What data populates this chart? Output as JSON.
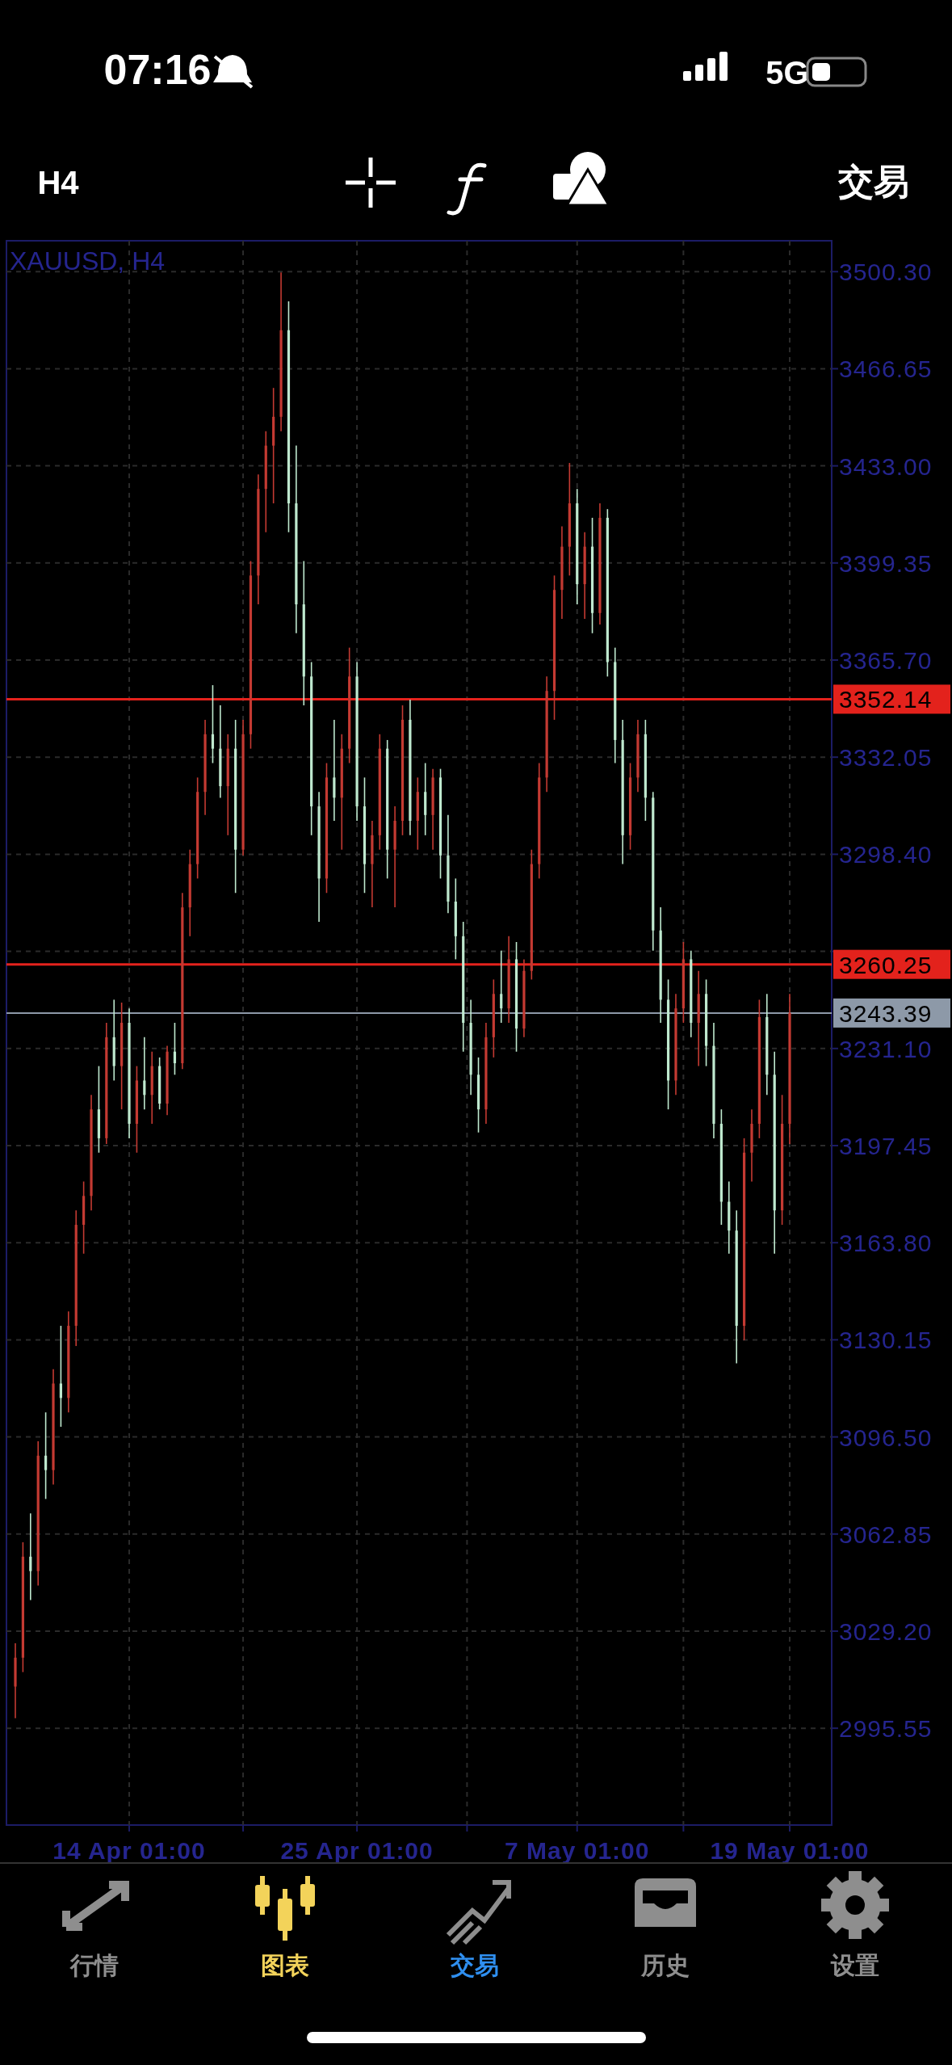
{
  "chart_data": {
    "type": "candlestick",
    "title": "XAUUSD, H4",
    "categories": [
      null,
      null,
      null,
      null,
      null,
      null,
      null,
      null,
      null,
      null,
      null,
      null,
      null,
      null,
      null,
      "14 Apr 01:00",
      null,
      null,
      null,
      null,
      null,
      null,
      null,
      null,
      null,
      null,
      null,
      null,
      null,
      null,
      null,
      null,
      null,
      null,
      null,
      null,
      null,
      null,
      null,
      null,
      null,
      null,
      null,
      null,
      null,
      "25 Apr 01:00",
      null,
      null,
      null,
      null,
      null,
      null,
      null,
      null,
      null,
      null,
      null,
      null,
      null,
      null,
      null,
      null,
      null,
      null,
      null,
      null,
      null,
      null,
      null,
      null,
      null,
      null,
      null,
      null,
      "7 May 01:00",
      null,
      null,
      null,
      null,
      null,
      null,
      null,
      null,
      null,
      null,
      null,
      null,
      null,
      null,
      null,
      null,
      null,
      null,
      null,
      null,
      null,
      null,
      null,
      null,
      null,
      null,
      null,
      "19 May 01:00"
    ],
    "ohlc": [
      [
        3010,
        3025,
        2999,
        3020
      ],
      [
        3020,
        3060,
        3015,
        3055
      ],
      [
        3055,
        3070,
        3040,
        3050
      ],
      [
        3050,
        3095,
        3045,
        3090
      ],
      [
        3090,
        3105,
        3075,
        3085
      ],
      [
        3085,
        3120,
        3080,
        3115
      ],
      [
        3115,
        3135,
        3100,
        3110
      ],
      [
        3110,
        3140,
        3105,
        3135
      ],
      [
        3135,
        3175,
        3128,
        3170
      ],
      [
        3170,
        3185,
        3160,
        3180
      ],
      [
        3180,
        3215,
        3175,
        3210
      ],
      [
        3210,
        3225,
        3195,
        3200
      ],
      [
        3200,
        3240,
        3198,
        3235
      ],
      [
        3235,
        3248,
        3220,
        3225
      ],
      [
        3225,
        3247,
        3210,
        3240
      ],
      [
        3240,
        3245,
        3200,
        3205
      ],
      [
        3205,
        3225,
        3195,
        3220
      ],
      [
        3220,
        3235,
        3210,
        3215
      ],
      [
        3215,
        3230,
        3205,
        3225
      ],
      [
        3225,
        3228,
        3210,
        3212
      ],
      [
        3212,
        3232,
        3208,
        3230
      ],
      [
        3230,
        3240,
        3222,
        3226
      ],
      [
        3226,
        3285,
        3224,
        3280
      ],
      [
        3280,
        3300,
        3270,
        3295
      ],
      [
        3295,
        3325,
        3290,
        3320
      ],
      [
        3320,
        3345,
        3312,
        3340
      ],
      [
        3340,
        3357,
        3330,
        3335
      ],
      [
        3335,
        3350,
        3318,
        3322
      ],
      [
        3322,
        3340,
        3305,
        3335
      ],
      [
        3335,
        3345,
        3285,
        3300
      ],
      [
        3300,
        3345,
        3298,
        3340
      ],
      [
        3340,
        3400,
        3335,
        3395
      ],
      [
        3395,
        3430,
        3385,
        3425
      ],
      [
        3425,
        3445,
        3410,
        3440
      ],
      [
        3440,
        3460,
        3420,
        3450
      ],
      [
        3450,
        3500,
        3445,
        3480
      ],
      [
        3480,
        3490,
        3410,
        3420
      ],
      [
        3420,
        3440,
        3375,
        3385
      ],
      [
        3385,
        3400,
        3350,
        3360
      ],
      [
        3360,
        3365,
        3305,
        3315
      ],
      [
        3315,
        3320,
        3275,
        3290
      ],
      [
        3290,
        3330,
        3285,
        3325
      ],
      [
        3325,
        3345,
        3310,
        3318
      ],
      [
        3318,
        3340,
        3300,
        3335
      ],
      [
        3335,
        3370,
        3330,
        3360
      ],
      [
        3360,
        3365,
        3310,
        3315
      ],
      [
        3315,
        3325,
        3285,
        3295
      ],
      [
        3295,
        3310,
        3280,
        3305
      ],
      [
        3305,
        3340,
        3300,
        3335
      ],
      [
        3335,
        3338,
        3290,
        3300
      ],
      [
        3300,
        3315,
        3280,
        3310
      ],
      [
        3310,
        3350,
        3305,
        3345
      ],
      [
        3345,
        3352,
        3305,
        3310
      ],
      [
        3310,
        3325,
        3300,
        3320
      ],
      [
        3320,
        3330,
        3305,
        3312
      ],
      [
        3312,
        3328,
        3300,
        3325
      ],
      [
        3325,
        3328,
        3290,
        3298
      ],
      [
        3298,
        3312,
        3278,
        3282
      ],
      [
        3282,
        3290,
        3262,
        3270
      ],
      [
        3270,
        3275,
        3230,
        3240
      ],
      [
        3240,
        3248,
        3215,
        3222
      ],
      [
        3222,
        3228,
        3202,
        3210
      ],
      [
        3210,
        3240,
        3205,
        3235
      ],
      [
        3235,
        3255,
        3228,
        3250
      ],
      [
        3250,
        3265,
        3240,
        3245
      ],
      [
        3245,
        3270,
        3240,
        3262
      ],
      [
        3262,
        3268,
        3230,
        3238
      ],
      [
        3238,
        3262,
        3235,
        3258
      ],
      [
        3258,
        3300,
        3255,
        3295
      ],
      [
        3295,
        3330,
        3290,
        3325
      ],
      [
        3325,
        3360,
        3320,
        3355
      ],
      [
        3355,
        3395,
        3345,
        3390
      ],
      [
        3390,
        3412,
        3380,
        3405
      ],
      [
        3405,
        3434,
        3395,
        3420
      ],
      [
        3420,
        3425,
        3385,
        3392
      ],
      [
        3392,
        3410,
        3380,
        3405
      ],
      [
        3405,
        3415,
        3375,
        3382
      ],
      [
        3382,
        3420,
        3378,
        3415
      ],
      [
        3415,
        3418,
        3360,
        3365
      ],
      [
        3365,
        3370,
        3330,
        3338
      ],
      [
        3338,
        3345,
        3295,
        3305
      ],
      [
        3305,
        3330,
        3300,
        3325
      ],
      [
        3325,
        3345,
        3320,
        3340
      ],
      [
        3340,
        3345,
        3310,
        3318
      ],
      [
        3318,
        3320,
        3265,
        3272
      ],
      [
        3272,
        3280,
        3240,
        3248
      ],
      [
        3248,
        3255,
        3210,
        3220
      ],
      [
        3220,
        3250,
        3215,
        3245
      ],
      [
        3245,
        3268,
        3240,
        3262
      ],
      [
        3262,
        3265,
        3235,
        3240
      ],
      [
        3240,
        3258,
        3225,
        3250
      ],
      [
        3250,
        3255,
        3225,
        3232
      ],
      [
        3232,
        3240,
        3200,
        3205
      ],
      [
        3205,
        3210,
        3170,
        3178
      ],
      [
        3178,
        3185,
        3160,
        3168
      ],
      [
        3168,
        3175,
        3122,
        3135
      ],
      [
        3135,
        3200,
        3130,
        3195
      ],
      [
        3195,
        3210,
        3185,
        3205
      ],
      [
        3205,
        3248,
        3200,
        3242
      ],
      [
        3242,
        3250,
        3215,
        3222
      ],
      [
        3222,
        3230,
        3160,
        3175
      ],
      [
        3175,
        3215,
        3170,
        3205
      ],
      [
        3205,
        3250,
        3198,
        3243.39
      ]
    ],
    "colors": [
      "#c43a32",
      "#c43a32",
      "#bfe9cf",
      "#c43a32",
      "#bfe9cf",
      "#c43a32",
      "#bfe9cf",
      "#c43a32",
      "#c43a32",
      "#c43a32",
      "#c43a32",
      "#bfe9cf",
      "#c43a32",
      "#bfe9cf",
      "#c43a32",
      "#bfe9cf",
      "#c43a32",
      "#bfe9cf",
      "#c43a32",
      "#bfe9cf",
      "#c43a32",
      "#bfe9cf",
      "#c43a32",
      "#c43a32",
      "#c43a32",
      "#c43a32",
      "#bfe9cf",
      "#bfe9cf",
      "#c43a32",
      "#bfe9cf",
      "#c43a32",
      "#c43a32",
      "#c43a32",
      "#c43a32",
      "#c43a32",
      "#c43a32",
      "#bfe9cf",
      "#bfe9cf",
      "#bfe9cf",
      "#bfe9cf",
      "#bfe9cf",
      "#c43a32",
      "#bfe9cf",
      "#c43a32",
      "#c43a32",
      "#bfe9cf",
      "#bfe9cf",
      "#c43a32",
      "#c43a32",
      "#bfe9cf",
      "#c43a32",
      "#c43a32",
      "#bfe9cf",
      "#c43a32",
      "#bfe9cf",
      "#c43a32",
      "#bfe9cf",
      "#bfe9cf",
      "#bfe9cf",
      "#bfe9cf",
      "#bfe9cf",
      "#bfe9cf",
      "#c43a32",
      "#c43a32",
      "#bfe9cf",
      "#c43a32",
      "#bfe9cf",
      "#c43a32",
      "#c43a32",
      "#c43a32",
      "#c43a32",
      "#c43a32",
      "#c43a32",
      "#c43a32",
      "#bfe9cf",
      "#c43a32",
      "#bfe9cf",
      "#c43a32",
      "#bfe9cf",
      "#bfe9cf",
      "#bfe9cf",
      "#c43a32",
      "#c43a32",
      "#bfe9cf",
      "#bfe9cf",
      "#bfe9cf",
      "#bfe9cf",
      "#c43a32",
      "#c43a32",
      "#bfe9cf",
      "#c43a32",
      "#bfe9cf",
      "#bfe9cf",
      "#bfe9cf",
      "#bfe9cf",
      "#bfe9cf",
      "#c43a32",
      "#c43a32",
      "#c43a32",
      "#bfe9cf",
      "#bfe9cf",
      "#c43a32",
      "#c43a32"
    ],
    "ylim": [
      2962,
      3511
    ],
    "yticks": [
      2995.55,
      {
        "value": 3029.2,
        "label": "3029.20"
      },
      3062.85,
      {
        "value": 3096.5,
        "label": "3096.50"
      },
      3130.15,
      {
        "value": 3163.8,
        "label": "3163.80"
      },
      3197.45,
      {
        "value": 3231.1,
        "label": "3231.10"
      },
      {
        "value": 3264.75,
        "label": null
      },
      {
        "value": 3298.4,
        "label": "3298.40"
      },
      3332.05,
      {
        "value": 3365.7,
        "label": "3365.70"
      },
      3399.35,
      {
        "value": 3433,
        "label": "3433.00"
      },
      3466.65,
      {
        "value": 3500.3,
        "label": "3500.30"
      }
    ],
    "ref_lines": [
      {
        "axis": "y",
        "value": 3352.14,
        "label": "3352.14",
        "color": "#e3221c"
      },
      {
        "axis": "y",
        "value": 3260.25,
        "label": "3260.25",
        "color": "#e3221c"
      },
      {
        "axis": "y",
        "value": 3243.39,
        "label": "3243.39",
        "color": "#8d99a8"
      }
    ],
    "grid": true,
    "annotations": [
      "07:16",
      "5G",
      "H4",
      "交易",
      "行情",
      "图表",
      "交易",
      "历史",
      "设置"
    ]
  }
}
